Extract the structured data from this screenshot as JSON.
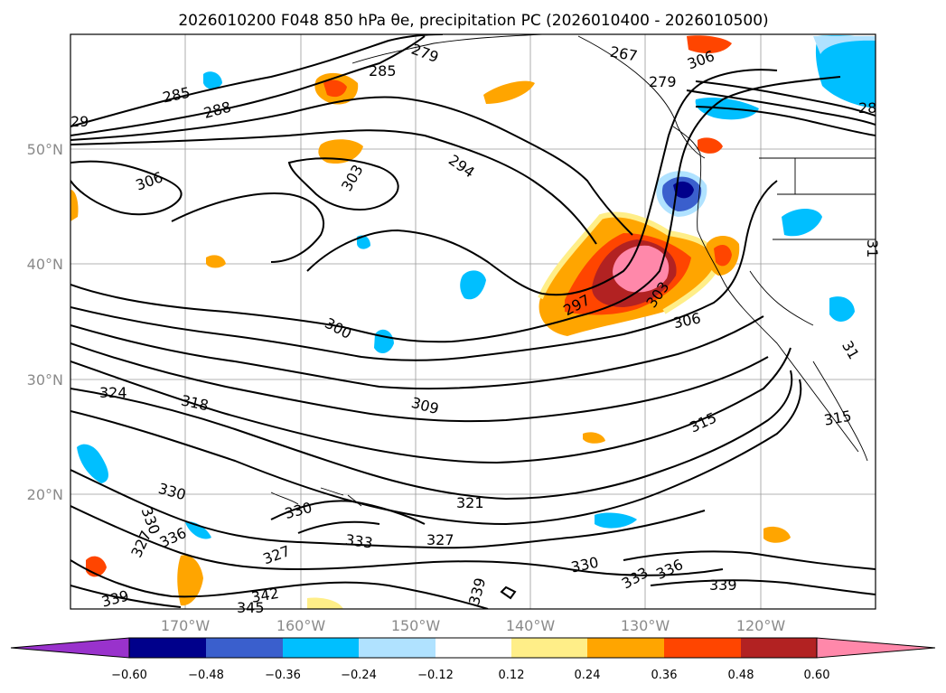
{
  "chart_data": {
    "type": "contour_map",
    "title": "2026010200 F048 850 hPa θe, precipitation PC (2026010400 - 2026010500)",
    "projection": "lat-lon",
    "lon_range": [
      -180,
      -110
    ],
    "lat_range": [
      10,
      60
    ],
    "xtick_labels": [
      "170°W",
      "160°W",
      "150°W",
      "140°W",
      "130°W",
      "120°W"
    ],
    "ytick_labels": [
      "20°N",
      "30°N",
      "40°N",
      "50°N"
    ],
    "theta_e_contour_labels": [
      "279",
      "285",
      "285",
      "288",
      "29",
      "306",
      "303",
      "294",
      "297",
      "303",
      "306",
      "300",
      "309",
      "318",
      "324",
      "315",
      "315",
      "321",
      "327",
      "330",
      "330",
      "330",
      "333",
      "333",
      "336",
      "336",
      "327",
      "339",
      "339",
      "342",
      "345",
      "339",
      "267",
      "279",
      "28",
      "31",
      "31"
    ],
    "colorbar": {
      "ticks": [
        "−0.60",
        "−0.48",
        "−0.36",
        "−0.24",
        "−0.12",
        "0.12",
        "0.24",
        "0.36",
        "0.48",
        "0.60"
      ],
      "colors": [
        "#9932cc",
        "#00008b",
        "#3a5fcd",
        "#00bfff",
        "#b0e2ff",
        "#ffffff",
        "#ffee88",
        "#ffa500",
        "#ff4500",
        "#b22222",
        "#ff88aa"
      ],
      "extend": "both"
    }
  }
}
